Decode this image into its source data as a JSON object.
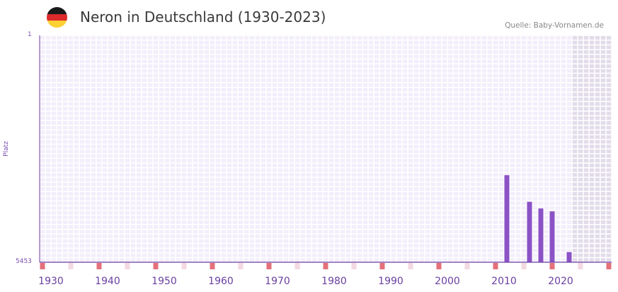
{
  "title": "Neron in Deutschland (1930-2023)",
  "source": "Quelle: Baby-Vornamen.de",
  "flag_icon": "germany-flag-icon",
  "colors": {
    "bar": "#8b52c6",
    "grid_bg": "#f3eefb",
    "grid_line": "#ffffff",
    "marker": "#e4707a",
    "marker_light": "#f3d9e0",
    "shade": "#e2dcea"
  },
  "chart_data": {
    "type": "bar",
    "title": "Neron in Deutschland (1930-2023)",
    "ylabel": "Platz",
    "ylim": [
      1,
      5453
    ],
    "yticks": [
      "1",
      "5453"
    ],
    "y_inverted": true,
    "xlim": [
      1928,
      2029
    ],
    "xticks": [
      "1930",
      "1940",
      "1950",
      "1960",
      "1970",
      "1980",
      "1990",
      "2000",
      "2010",
      "2020"
    ],
    "x": [
      2010,
      2014,
      2016,
      2018,
      2021
    ],
    "values": [
      3360,
      4000,
      4160,
      4230,
      5210
    ],
    "shaded_range": [
      2022,
      2029
    ]
  }
}
